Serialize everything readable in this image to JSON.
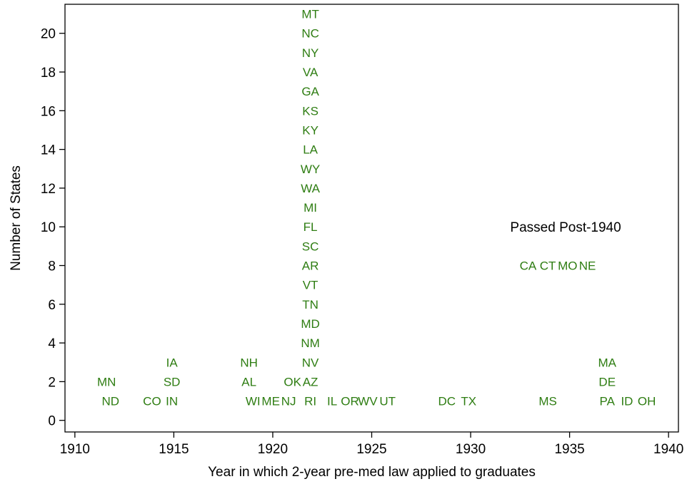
{
  "chart_data": {
    "type": "scatter",
    "title": "",
    "xlabel": "Year in which 2-year pre-med law applied to graduates",
    "ylabel": "Number of States",
    "xlim": [
      1909.5,
      1940.5
    ],
    "ylim": [
      -0.6,
      21.5
    ],
    "x_ticks": [
      1910,
      1915,
      1920,
      1925,
      1930,
      1935,
      1940
    ],
    "y_ticks": [
      0,
      2,
      4,
      6,
      8,
      10,
      12,
      14,
      16,
      18,
      20
    ],
    "grid": false,
    "marker_color": "#2e7d12",
    "annotation": {
      "text": "Passed Post-1940",
      "x": 1934.8,
      "y": 10
    },
    "points": [
      {
        "label": "ND",
        "x": 1911.8,
        "y": 1
      },
      {
        "label": "MN",
        "x": 1911.6,
        "y": 2
      },
      {
        "label": "CO",
        "x": 1913.9,
        "y": 1
      },
      {
        "label": "IN",
        "x": 1914.9,
        "y": 1
      },
      {
        "label": "SD",
        "x": 1914.9,
        "y": 2
      },
      {
        "label": "IA",
        "x": 1914.9,
        "y": 3
      },
      {
        "label": "WI",
        "x": 1919.0,
        "y": 1
      },
      {
        "label": "AL",
        "x": 1918.8,
        "y": 2
      },
      {
        "label": "NH",
        "x": 1918.8,
        "y": 3
      },
      {
        "label": "ME",
        "x": 1919.9,
        "y": 1
      },
      {
        "label": "NJ",
        "x": 1920.8,
        "y": 1
      },
      {
        "label": "OK",
        "x": 1921.0,
        "y": 2
      },
      {
        "label": "RI",
        "x": 1921.9,
        "y": 1
      },
      {
        "label": "AZ",
        "x": 1921.9,
        "y": 2
      },
      {
        "label": "NV",
        "x": 1921.9,
        "y": 3
      },
      {
        "label": "NM",
        "x": 1921.9,
        "y": 4
      },
      {
        "label": "MD",
        "x": 1921.9,
        "y": 5
      },
      {
        "label": "TN",
        "x": 1921.9,
        "y": 6
      },
      {
        "label": "VT",
        "x": 1921.9,
        "y": 7
      },
      {
        "label": "AR",
        "x": 1921.9,
        "y": 8
      },
      {
        "label": "SC",
        "x": 1921.9,
        "y": 9
      },
      {
        "label": "FL",
        "x": 1921.9,
        "y": 10
      },
      {
        "label": "MI",
        "x": 1921.9,
        "y": 11
      },
      {
        "label": "WA",
        "x": 1921.9,
        "y": 12
      },
      {
        "label": "WY",
        "x": 1921.9,
        "y": 13
      },
      {
        "label": "LA",
        "x": 1921.9,
        "y": 14
      },
      {
        "label": "KY",
        "x": 1921.9,
        "y": 15
      },
      {
        "label": "KS",
        "x": 1921.9,
        "y": 16
      },
      {
        "label": "GA",
        "x": 1921.9,
        "y": 17
      },
      {
        "label": "VA",
        "x": 1921.9,
        "y": 18
      },
      {
        "label": "NY",
        "x": 1921.9,
        "y": 19
      },
      {
        "label": "NC",
        "x": 1921.9,
        "y": 20
      },
      {
        "label": "MT",
        "x": 1921.9,
        "y": 21
      },
      {
        "label": "IL",
        "x": 1923.0,
        "y": 1
      },
      {
        "label": "OR",
        "x": 1923.9,
        "y": 1
      },
      {
        "label": "WV",
        "x": 1924.8,
        "y": 1
      },
      {
        "label": "UT",
        "x": 1925.8,
        "y": 1
      },
      {
        "label": "DC",
        "x": 1928.8,
        "y": 1
      },
      {
        "label": "TX",
        "x": 1929.9,
        "y": 1
      },
      {
        "label": "MS",
        "x": 1933.9,
        "y": 1
      },
      {
        "label": "CA",
        "x": 1932.9,
        "y": 8
      },
      {
        "label": "CT",
        "x": 1933.9,
        "y": 8
      },
      {
        "label": "MO",
        "x": 1934.9,
        "y": 8
      },
      {
        "label": "NE",
        "x": 1935.9,
        "y": 8
      },
      {
        "label": "PA",
        "x": 1936.9,
        "y": 1
      },
      {
        "label": "DE",
        "x": 1936.9,
        "y": 2
      },
      {
        "label": "MA",
        "x": 1936.9,
        "y": 3
      },
      {
        "label": "ID",
        "x": 1937.9,
        "y": 1
      },
      {
        "label": "OH",
        "x": 1938.9,
        "y": 1
      }
    ]
  }
}
